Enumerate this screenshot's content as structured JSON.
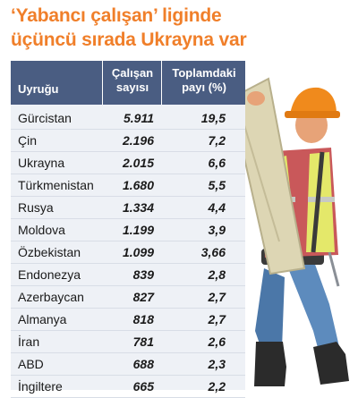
{
  "title": {
    "line1": "‘Yabancı çalışan’ liginde",
    "line2": "üçüncü sırada Ukrayna var"
  },
  "headers": {
    "country": "Uyruğu",
    "workers_line1": "Çalışan",
    "workers_line2": "sayısı",
    "share_line1": "Toplamdaki",
    "share_line2": "payı (%)"
  },
  "chart_data": {
    "type": "table",
    "columns": [
      "Uyruğu",
      "Çalışan sayısı",
      "Toplamdaki payı (%)"
    ],
    "rows": [
      {
        "country": "Gürcistan",
        "workers": "5.911",
        "share": "19,5"
      },
      {
        "country": "Çin",
        "workers": "2.196",
        "share": "7,2"
      },
      {
        "country": "Ukrayna",
        "workers": "2.015",
        "share": "6,6"
      },
      {
        "country": "Türkmenistan",
        "workers": "1.680",
        "share": "5,5"
      },
      {
        "country": "Rusya",
        "workers": "1.334",
        "share": "4,4"
      },
      {
        "country": "Moldova",
        "workers": "1.199",
        "share": "3,9"
      },
      {
        "country": "Özbekistan",
        "workers": "1.099",
        "share": "3,66"
      },
      {
        "country": "Endonezya",
        "workers": "839",
        "share": "2,8"
      },
      {
        "country": "Azerbaycan",
        "workers": "827",
        "share": "2,7"
      },
      {
        "country": "Almanya",
        "workers": "818",
        "share": "2,7"
      },
      {
        "country": "İran",
        "workers": "781",
        "share": "2,6"
      },
      {
        "country": "ABD",
        "workers": "688",
        "share": "2,3"
      },
      {
        "country": "İngiltere",
        "workers": "665",
        "share": "2,2"
      }
    ]
  },
  "colors": {
    "title": "#f07f2a",
    "header_bg": "#4a5d82",
    "table_bg": "#eef1f6"
  }
}
